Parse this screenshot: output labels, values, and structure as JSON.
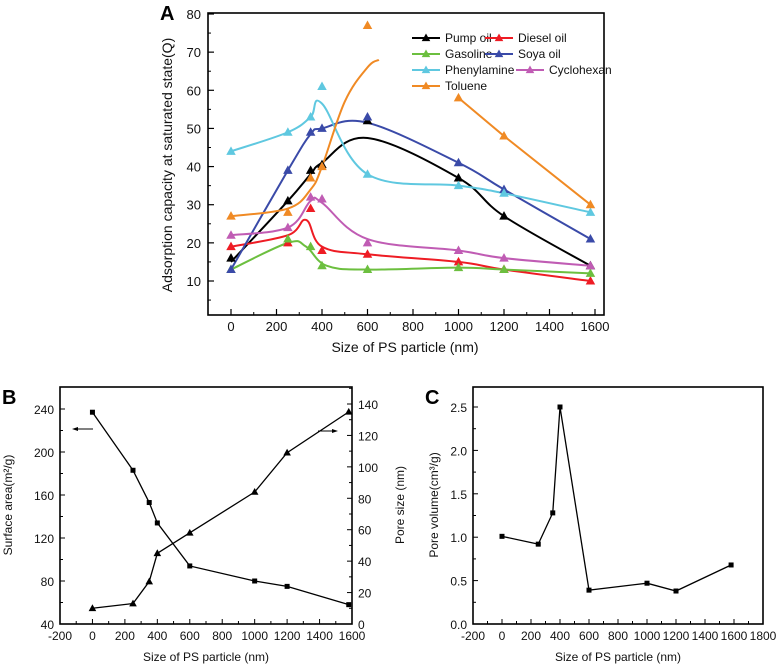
{
  "chart_data": [
    {
      "panel": "A",
      "type": "line",
      "title": "",
      "xlabel": "Size of PS particle (nm)",
      "ylabel": "Adsorption capacity at saturated state(Q)",
      "xlim": [
        -100,
        1700
      ],
      "ylim": [
        0,
        80
      ],
      "xticks": [
        "0",
        "200",
        "400",
        "600",
        "800",
        "1000",
        "1200",
        "1400",
        "1600"
      ],
      "yticks": [
        "10",
        "20",
        "30",
        "40",
        "50",
        "60",
        "70",
        "80"
      ],
      "x": [
        0,
        250,
        350,
        400,
        600,
        1000,
        1200,
        1580
      ],
      "legend_position": "top-right",
      "series": [
        {
          "name": "Pump oil",
          "color": "#000000",
          "values": [
            16,
            31,
            39,
            40.5,
            52,
            37,
            27,
            14
          ]
        },
        {
          "name": "Diesel oil",
          "color": "#ee1c24",
          "values": [
            19,
            20,
            29,
            18,
            17,
            15,
            13,
            10
          ]
        },
        {
          "name": "Gasoline",
          "color": "#6cbf3f",
          "values": [
            13,
            21,
            19,
            14,
            13,
            13.5,
            13,
            12
          ]
        },
        {
          "name": "Soya oil",
          "color": "#3a4aa8",
          "values": [
            13,
            39,
            49,
            50,
            53,
            41,
            34,
            21
          ]
        },
        {
          "name": "Phenylamine",
          "color": "#5fc8e0",
          "values": [
            44,
            49,
            53,
            61,
            38,
            35,
            33,
            28
          ]
        },
        {
          "name": "Cyclohexan",
          "color": "#c05cb4",
          "values": [
            22,
            24,
            32,
            31.5,
            20,
            18,
            16,
            14
          ]
        },
        {
          "name": "Toluene",
          "color": "#f08a24",
          "values": [
            27,
            28,
            37,
            40,
            77,
            58,
            48,
            30
          ]
        }
      ]
    },
    {
      "panel": "B",
      "type": "line",
      "title": "",
      "xlabel": "Size of PS particle (nm)",
      "ylabel": "Surface area(m²/g)",
      "ylabel_right": "Pore size (nm)",
      "xlim": [
        -200,
        1600
      ],
      "ylim": [
        40,
        260
      ],
      "ylim_right": [
        0,
        150
      ],
      "xticks": [
        "-200",
        "0",
        "200",
        "400",
        "600",
        "800",
        "1000",
        "1200",
        "1400",
        "1600"
      ],
      "yticks": [
        "40",
        "80",
        "120",
        "160",
        "200",
        "240"
      ],
      "yticks_right": [
        "0",
        "20",
        "40",
        "60",
        "80",
        "100",
        "120",
        "140"
      ],
      "x": [
        0,
        250,
        350,
        400,
        600,
        1000,
        1200,
        1580
      ],
      "series": [
        {
          "name": "Surface area",
          "axis": "left",
          "marker": "square",
          "values": [
            237,
            183,
            153,
            134,
            94,
            80,
            75,
            58
          ]
        },
        {
          "name": "Pore size",
          "axis": "right",
          "marker": "triangle",
          "values": [
            10,
            13,
            27,
            45,
            58,
            84,
            109,
            135
          ]
        }
      ],
      "annotations": [
        "left-arrow indicates surface area axis",
        "right-arrow indicates pore size axis"
      ]
    },
    {
      "panel": "C",
      "type": "line",
      "title": "",
      "xlabel": "Size of PS particle (nm)",
      "ylabel": "Pore volume(cm³/g)",
      "xlim": [
        -200,
        1800
      ],
      "ylim": [
        0,
        2.7
      ],
      "xticks": [
        "-200",
        "0",
        "200",
        "400",
        "600",
        "800",
        "1000",
        "1200",
        "1400",
        "1600",
        "1800"
      ],
      "yticks": [
        "0.0",
        "0.5",
        "1.0",
        "1.5",
        "2.0",
        "2.5"
      ],
      "x": [
        0,
        250,
        350,
        400,
        600,
        1000,
        1200,
        1580
      ],
      "series": [
        {
          "name": "Pore volume",
          "marker": "square",
          "values": [
            1.01,
            0.92,
            1.28,
            2.5,
            0.39,
            0.47,
            0.38,
            0.68
          ]
        }
      ]
    }
  ],
  "labels": {
    "panelA": "A",
    "panelB": "B",
    "panelC": "C",
    "xlabel": "Size of PS particle (nm)",
    "ylabelA": "Adsorption capacity at saturated state(Q)",
    "ylabelB_left": "Surface area(m²/g)",
    "ylabelB_right": "Pore size (nm)",
    "ylabelC": "Pore volume(cm³/g)"
  }
}
